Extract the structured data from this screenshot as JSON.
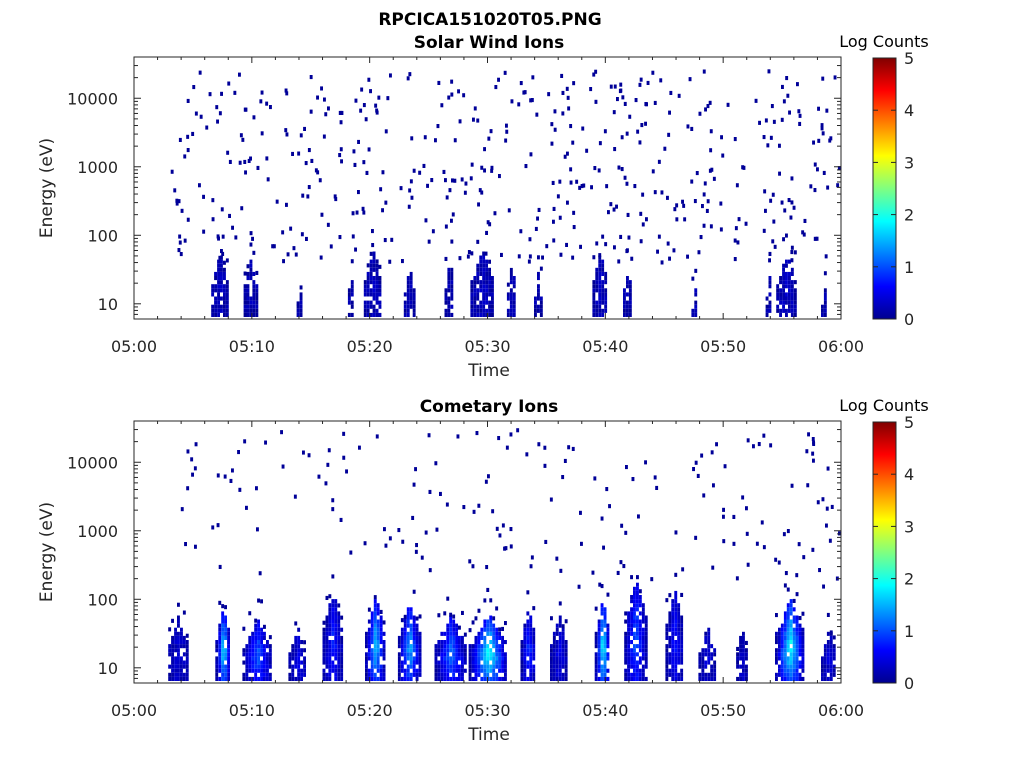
{
  "figure_title": "RPCICA151020T05.PNG",
  "colormap": [
    "#00008f",
    "#0000ff",
    "#0080ff",
    "#00ffff",
    "#80ff80",
    "#ffff00",
    "#ff8000",
    "#ff0000",
    "#800000"
  ],
  "chart_data": [
    {
      "type": "heatmap",
      "title": "Solar Wind Ions",
      "xlabel": "Time",
      "ylabel": "Energy (eV)",
      "x_ticks": [
        "05:00",
        "05:10",
        "05:20",
        "05:30",
        "05:40",
        "05:50",
        "06:00"
      ],
      "xlim_minutes": [
        0,
        60
      ],
      "y_ticks": [
        "10",
        "100",
        "1000",
        "10000"
      ],
      "y_scale": "log",
      "ylim": [
        6,
        40000
      ],
      "colorbar": {
        "label": "Log Counts",
        "ticks": [
          "0",
          "1",
          "2",
          "3",
          "4",
          "5"
        ],
        "range": [
          0,
          5
        ]
      },
      "clusters": [
        {
          "t": 7.2,
          "w": 1.3,
          "emax": 55,
          "lv": 0.15
        },
        {
          "t": 9.8,
          "w": 1.0,
          "emax": 50,
          "lv": 0.1
        },
        {
          "t": 14.0,
          "w": 0.4,
          "emax": 20,
          "lv": 0.05
        },
        {
          "t": 18.3,
          "w": 0.3,
          "emax": 50,
          "lv": 0.05
        },
        {
          "t": 20.2,
          "w": 1.4,
          "emax": 60,
          "lv": 0.15
        },
        {
          "t": 23.3,
          "w": 0.8,
          "emax": 35,
          "lv": 0.1
        },
        {
          "t": 26.7,
          "w": 0.7,
          "emax": 50,
          "lv": 0.1
        },
        {
          "t": 29.5,
          "w": 1.9,
          "emax": 60,
          "lv": 0.2
        },
        {
          "t": 32.0,
          "w": 0.7,
          "emax": 35,
          "lv": 0.1
        },
        {
          "t": 34.2,
          "w": 0.5,
          "emax": 30,
          "lv": 0.05
        },
        {
          "t": 39.5,
          "w": 1.2,
          "emax": 60,
          "lv": 0.2
        },
        {
          "t": 41.8,
          "w": 0.6,
          "emax": 40,
          "lv": 0.1
        },
        {
          "t": 47.5,
          "w": 0.4,
          "emax": 20,
          "lv": 0.05
        },
        {
          "t": 53.8,
          "w": 0.4,
          "emax": 30,
          "lv": 0.05
        },
        {
          "t": 55.3,
          "w": 1.6,
          "emax": 55,
          "lv": 0.2
        },
        {
          "t": 58.5,
          "w": 0.4,
          "emax": 20,
          "lv": 0.05
        }
      ],
      "sparse": {
        "count": 470,
        "emin": 40,
        "emax": 25000,
        "tmin": 3,
        "tmax": 60
      }
    },
    {
      "type": "heatmap",
      "title": "Cometary Ions",
      "xlabel": "Time",
      "ylabel": "Energy (eV)",
      "x_ticks": [
        "05:00",
        "05:10",
        "05:20",
        "05:30",
        "05:40",
        "05:50",
        "06:00"
      ],
      "xlim_minutes": [
        0,
        60
      ],
      "y_ticks": [
        "10",
        "100",
        "1000",
        "10000"
      ],
      "y_scale": "log",
      "ylim": [
        6,
        40000
      ],
      "colorbar": {
        "label": "Log Counts",
        "ticks": [
          "0",
          "1",
          "2",
          "3",
          "4",
          "5"
        ],
        "range": [
          0,
          5
        ]
      },
      "clusters": [
        {
          "t": 3.7,
          "w": 1.6,
          "emax": 60,
          "lv": 0.3
        },
        {
          "t": 7.5,
          "w": 1.2,
          "emax": 80,
          "lv": 1.7
        },
        {
          "t": 10.4,
          "w": 2.4,
          "emax": 50,
          "lv": 1.0
        },
        {
          "t": 13.8,
          "w": 1.4,
          "emax": 40,
          "lv": 0.4
        },
        {
          "t": 16.8,
          "w": 1.6,
          "emax": 130,
          "lv": 0.7
        },
        {
          "t": 20.4,
          "w": 1.6,
          "emax": 110,
          "lv": 1.6
        },
        {
          "t": 23.3,
          "w": 1.8,
          "emax": 90,
          "lv": 1.4
        },
        {
          "t": 26.8,
          "w": 2.6,
          "emax": 60,
          "lv": 1.1
        },
        {
          "t": 30.0,
          "w": 3.2,
          "emax": 60,
          "lv": 1.9
        },
        {
          "t": 33.4,
          "w": 1.2,
          "emax": 80,
          "lv": 0.8
        },
        {
          "t": 36.0,
          "w": 1.4,
          "emax": 60,
          "lv": 0.4
        },
        {
          "t": 39.7,
          "w": 1.2,
          "emax": 100,
          "lv": 1.9
        },
        {
          "t": 42.5,
          "w": 1.8,
          "emax": 200,
          "lv": 1.0
        },
        {
          "t": 45.8,
          "w": 1.4,
          "emax": 150,
          "lv": 0.6
        },
        {
          "t": 48.6,
          "w": 1.4,
          "emax": 40,
          "lv": 0.3
        },
        {
          "t": 51.5,
          "w": 0.8,
          "emax": 40,
          "lv": 0.3
        },
        {
          "t": 55.6,
          "w": 2.4,
          "emax": 100,
          "lv": 1.9
        },
        {
          "t": 58.9,
          "w": 1.2,
          "emax": 40,
          "lv": 0.3
        }
      ],
      "sparse": {
        "count": 180,
        "emin": 150,
        "emax": 30000,
        "tmin": 3,
        "tmax": 60
      }
    }
  ]
}
